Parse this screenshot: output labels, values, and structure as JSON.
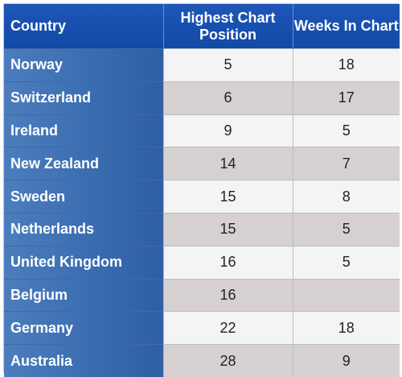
{
  "chart_data": {
    "type": "table",
    "columns": [
      "Country",
      "Highest Chart Position",
      "Weeks In Chart"
    ],
    "rows": [
      {
        "country": "Norway",
        "position": "5",
        "weeks": "18"
      },
      {
        "country": "Switzerland",
        "position": "6",
        "weeks": "17"
      },
      {
        "country": "Ireland",
        "position": "9",
        "weeks": "5"
      },
      {
        "country": "New Zealand",
        "position": "14",
        "weeks": "7"
      },
      {
        "country": "Sweden",
        "position": "15",
        "weeks": "8"
      },
      {
        "country": "Netherlands",
        "position": "15",
        "weeks": "5"
      },
      {
        "country": "United Kingdom",
        "position": "16",
        "weeks": "5"
      },
      {
        "country": "Belgium",
        "position": "16",
        "weeks": ""
      },
      {
        "country": "Germany",
        "position": "22",
        "weeks": "18"
      },
      {
        "country": "Australia",
        "position": "28",
        "weeks": "9"
      }
    ]
  },
  "colors": {
    "header": "#1b52b3",
    "country_column": "#3f71b3",
    "row_light": "#f5f4f4",
    "row_dark": "#d7d0d1"
  }
}
